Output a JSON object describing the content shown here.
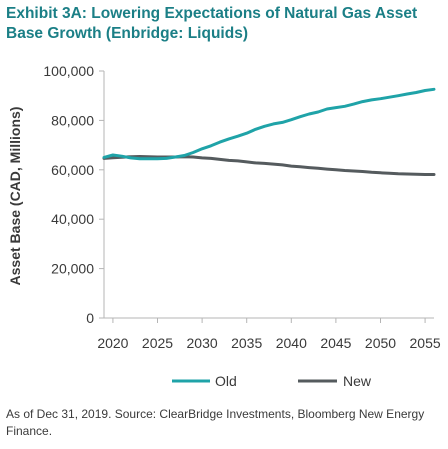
{
  "title": "Exhibit 3A: Lowering Expectations of Natural Gas Asset Base Growth (Enbridge: Liquids)",
  "footnote": "As of Dec 31, 2019. Source: ClearBridge Investments, Bloomberg New Energy Finance.",
  "colors": {
    "old": "#1fa3a8",
    "new": "#555b5e",
    "title": "#1b7f86",
    "axis": "#b5b5b5"
  },
  "chart_data": {
    "type": "line",
    "title": "Exhibit 3A: Lowering Expectations of Natural Gas Asset Base Growth (Enbridge: Liquids)",
    "xlabel": "",
    "ylabel": "Asset Base (CAD, Millions)",
    "xlim": [
      2020,
      2056
    ],
    "ylim": [
      0,
      100000
    ],
    "x_ticks": [
      2020,
      2025,
      2030,
      2035,
      2040,
      2045,
      2050,
      2055
    ],
    "y_ticks": [
      0,
      20000,
      40000,
      60000,
      80000,
      100000
    ],
    "y_tick_labels": [
      "0",
      "20,000",
      "40,000",
      "60,000",
      "80,000",
      "100,000"
    ],
    "x_tick_labels": [
      "2020",
      "2025",
      "2030",
      "2035",
      "2040",
      "2045",
      "2050",
      "2055"
    ],
    "grid": false,
    "legend_position": "bottom",
    "x": [
      2019,
      2020,
      2021,
      2022,
      2023,
      2024,
      2025,
      2026,
      2027,
      2028,
      2029,
      2030,
      2031,
      2032,
      2033,
      2034,
      2035,
      2036,
      2037,
      2038,
      2039,
      2040,
      2041,
      2042,
      2043,
      2044,
      2045,
      2046,
      2047,
      2048,
      2049,
      2050,
      2051,
      2052,
      2053,
      2054,
      2055,
      2056
    ],
    "series": [
      {
        "name": "Old",
        "values": [
          65000,
          66000,
          65500,
          64800,
          64500,
          64500,
          64500,
          64600,
          65200,
          65800,
          67000,
          68500,
          69700,
          71200,
          72500,
          73600,
          74800,
          76400,
          77600,
          78600,
          79200,
          80300,
          81500,
          82600,
          83400,
          84600,
          85200,
          85700,
          86600,
          87600,
          88300,
          88800,
          89400,
          90000,
          90700,
          91300,
          92100,
          92600
        ]
      },
      {
        "name": "New",
        "values": [
          64600,
          64900,
          65100,
          65300,
          65400,
          65300,
          65200,
          65200,
          65200,
          65300,
          65200,
          64800,
          64600,
          64200,
          63800,
          63600,
          63200,
          62800,
          62600,
          62300,
          62000,
          61500,
          61200,
          60900,
          60600,
          60300,
          60000,
          59700,
          59500,
          59300,
          59000,
          58800,
          58600,
          58400,
          58300,
          58200,
          58100,
          58100
        ]
      }
    ]
  }
}
